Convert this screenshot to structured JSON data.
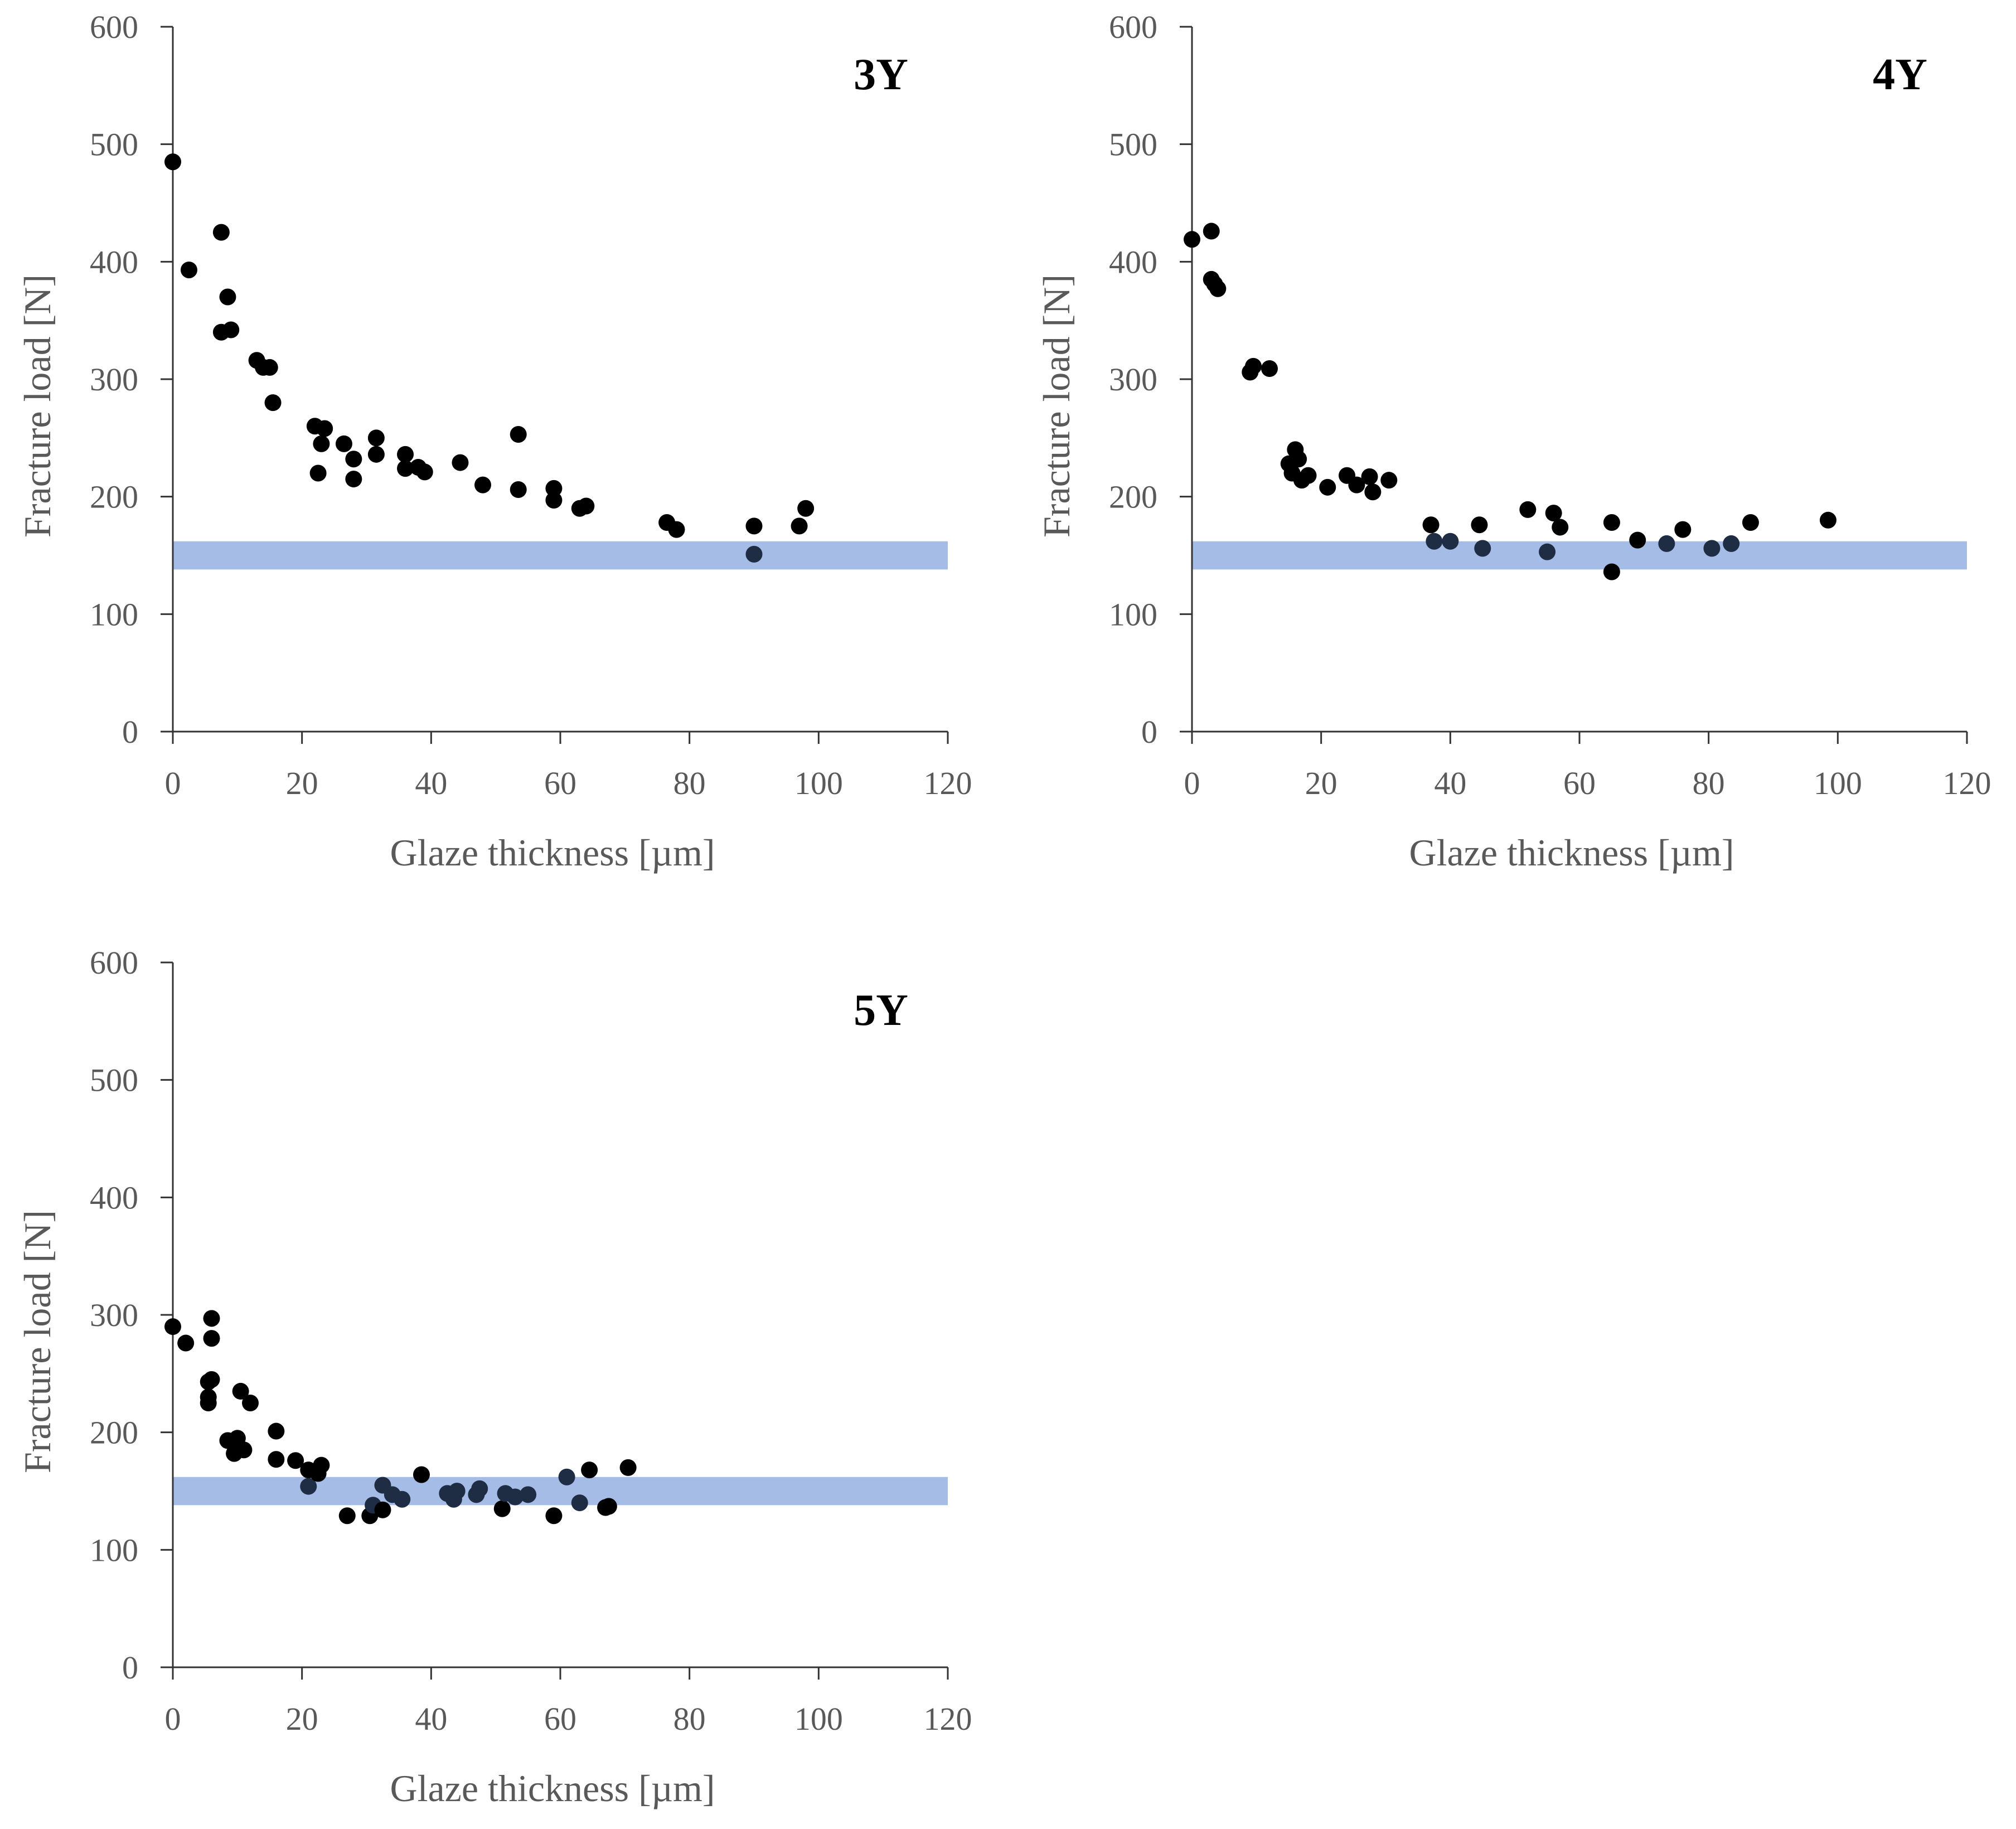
{
  "figure": {
    "background": "#ffffff"
  },
  "style": {
    "point_color": "#000000",
    "point_color_in_band": "#1f2d44",
    "band_color": "#a4bce6",
    "axis_color": "#333333",
    "text_color": "#595959"
  },
  "chart_data": [
    {
      "type": "scatter",
      "title": "3Y",
      "xlabel": "Glaze thickness [µm]",
      "ylabel": "Fracture load [N]",
      "xlim": [
        0,
        120
      ],
      "ylim": [
        0,
        600
      ],
      "xticks": [
        0,
        20,
        40,
        60,
        80,
        100,
        120
      ],
      "yticks": [
        0,
        100,
        200,
        300,
        400,
        500,
        600
      ],
      "band": [
        138,
        162
      ],
      "grid": false,
      "points": [
        [
          0,
          485
        ],
        [
          2.5,
          393
        ],
        [
          7.5,
          425
        ],
        [
          8.5,
          370
        ],
        [
          7.5,
          340
        ],
        [
          9,
          342
        ],
        [
          13,
          316
        ],
        [
          14,
          310
        ],
        [
          15,
          310
        ],
        [
          15.5,
          280
        ],
        [
          22,
          260
        ],
        [
          23.5,
          258
        ],
        [
          23,
          245
        ],
        [
          22.5,
          220
        ],
        [
          26.5,
          245
        ],
        [
          28,
          232
        ],
        [
          28,
          215
        ],
        [
          31.5,
          250
        ],
        [
          31.5,
          236
        ],
        [
          36,
          236
        ],
        [
          36,
          224
        ],
        [
          38,
          225
        ],
        [
          39,
          221
        ],
        [
          44.5,
          229
        ],
        [
          48,
          210
        ],
        [
          53.5,
          253
        ],
        [
          53.5,
          206
        ],
        [
          59,
          207
        ],
        [
          59,
          197
        ],
        [
          63,
          190
        ],
        [
          64,
          192
        ],
        [
          76.5,
          178
        ],
        [
          78,
          172
        ],
        [
          90,
          175
        ],
        [
          90,
          151
        ],
        [
          97,
          175
        ],
        [
          98,
          190
        ]
      ]
    },
    {
      "type": "scatter",
      "title": "4Y",
      "xlabel": "Glaze thickness [µm]",
      "ylabel": "Fracture load [N]",
      "xlim": [
        0,
        120
      ],
      "ylim": [
        0,
        600
      ],
      "xticks": [
        0,
        20,
        40,
        60,
        80,
        100,
        120
      ],
      "yticks": [
        0,
        100,
        200,
        300,
        400,
        500,
        600
      ],
      "band": [
        138,
        162
      ],
      "grid": false,
      "points": [
        [
          0,
          419
        ],
        [
          3,
          426
        ],
        [
          3,
          385
        ],
        [
          3.5,
          381
        ],
        [
          4,
          377
        ],
        [
          9,
          306
        ],
        [
          9.5,
          311
        ],
        [
          12,
          309
        ],
        [
          15,
          228
        ],
        [
          15.5,
          220
        ],
        [
          16,
          240
        ],
        [
          16.5,
          232
        ],
        [
          17,
          214
        ],
        [
          18,
          218
        ],
        [
          21,
          208
        ],
        [
          24,
          218
        ],
        [
          25.5,
          210
        ],
        [
          27.5,
          217
        ],
        [
          28,
          204
        ],
        [
          30.5,
          214
        ],
        [
          37,
          176
        ],
        [
          37.5,
          162
        ],
        [
          40,
          162
        ],
        [
          44.5,
          176
        ],
        [
          45,
          156
        ],
        [
          52,
          189
        ],
        [
          55,
          153
        ],
        [
          56,
          186
        ],
        [
          57,
          174
        ],
        [
          65,
          178
        ],
        [
          65,
          136
        ],
        [
          69,
          163
        ],
        [
          73.5,
          160
        ],
        [
          76,
          172
        ],
        [
          80.5,
          156
        ],
        [
          83.5,
          160
        ],
        [
          86.5,
          178
        ],
        [
          98.5,
          180
        ]
      ]
    },
    {
      "type": "scatter",
      "title": "5Y",
      "xlabel": "Glaze thickness [µm]",
      "ylabel": "Fracture load [N]",
      "xlim": [
        0,
        120
      ],
      "ylim": [
        0,
        600
      ],
      "xticks": [
        0,
        20,
        40,
        60,
        80,
        100,
        120
      ],
      "yticks": [
        0,
        100,
        200,
        300,
        400,
        500,
        600
      ],
      "band": [
        138,
        162
      ],
      "grid": false,
      "points": [
        [
          0,
          290
        ],
        [
          2,
          276
        ],
        [
          6,
          297
        ],
        [
          6,
          280
        ],
        [
          5.5,
          243
        ],
        [
          6,
          245
        ],
        [
          5.5,
          230
        ],
        [
          5.5,
          225
        ],
        [
          8.5,
          193
        ],
        [
          9.5,
          182
        ],
        [
          10,
          195
        ],
        [
          11,
          185
        ],
        [
          10.5,
          235
        ],
        [
          12,
          225
        ],
        [
          16,
          201
        ],
        [
          16,
          177
        ],
        [
          19,
          176
        ],
        [
          21,
          168
        ],
        [
          21,
          154
        ],
        [
          23,
          172
        ],
        [
          22.5,
          165
        ],
        [
          27,
          129
        ],
        [
          30.5,
          129
        ],
        [
          31,
          138
        ],
        [
          32.5,
          155
        ],
        [
          32.5,
          134
        ],
        [
          34,
          147
        ],
        [
          35.5,
          143
        ],
        [
          38.5,
          164
        ],
        [
          42.5,
          148
        ],
        [
          43.5,
          143
        ],
        [
          44,
          150
        ],
        [
          47,
          147
        ],
        [
          47.5,
          152
        ],
        [
          51,
          135
        ],
        [
          51.5,
          148
        ],
        [
          53,
          145
        ],
        [
          55,
          147
        ],
        [
          59,
          129
        ],
        [
          61,
          162
        ],
        [
          63,
          140
        ],
        [
          64.5,
          168
        ],
        [
          67,
          136
        ],
        [
          67.5,
          137
        ],
        [
          70.5,
          170
        ]
      ]
    }
  ]
}
